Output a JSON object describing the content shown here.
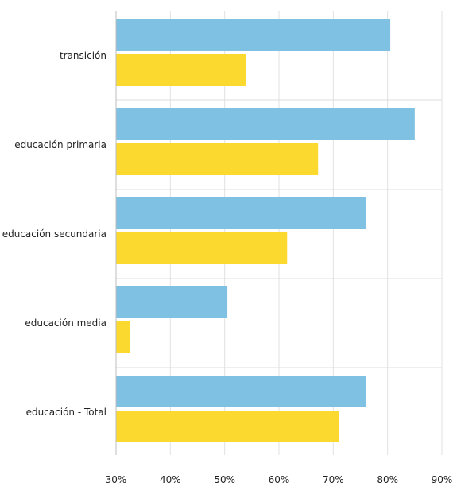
{
  "chart_data": {
    "type": "bar",
    "orientation": "horizontal",
    "categories": [
      "transición",
      "educación primaria",
      "educación secundaria",
      "educación media",
      "educación - Total"
    ],
    "series": [
      {
        "values": [
          80.5,
          85.0,
          76.0,
          50.5,
          76.0
        ],
        "color": "#7fc1e3"
      },
      {
        "values": [
          54.0,
          67.2,
          61.5,
          32.5,
          71.0
        ],
        "color": "#fbd92e"
      }
    ],
    "xlim": [
      30,
      90
    ],
    "x_ticks": [
      "30%",
      "40%",
      "50%",
      "60%",
      "70%",
      "80%",
      "90%"
    ],
    "grid": true,
    "legend": "none",
    "title": "",
    "xlabel": "",
    "ylabel": ""
  }
}
